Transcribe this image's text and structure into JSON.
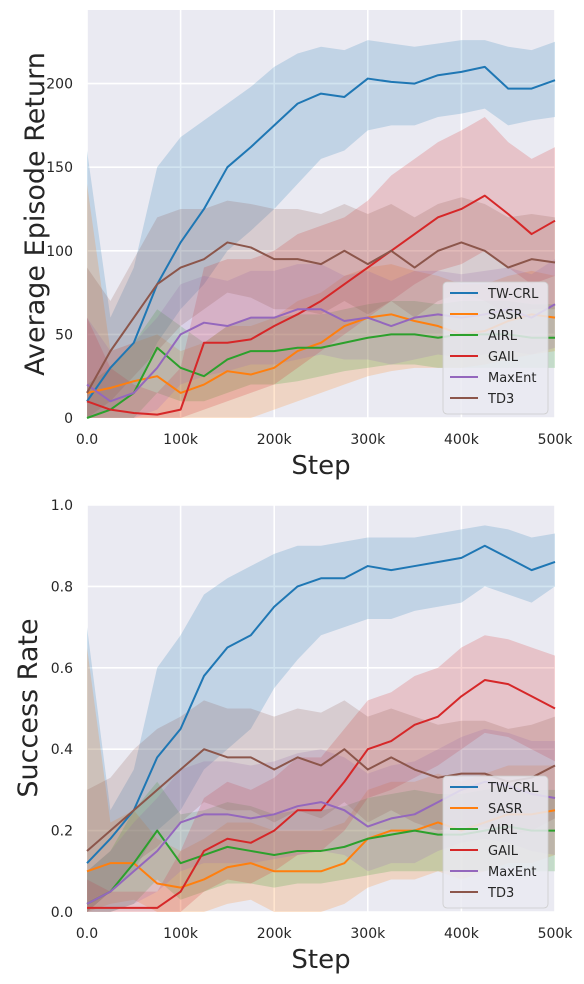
{
  "chart_data": [
    {
      "type": "line",
      "xlabel": "Step",
      "ylabel": "Average Episode Return",
      "xlim": [
        0,
        500000
      ],
      "ylim": [
        0,
        244
      ],
      "xticks": [
        0,
        100000,
        200000,
        300000,
        400000,
        500000
      ],
      "xtick_labels": [
        "0.0",
        "100k",
        "200k",
        "300k",
        "400k",
        "500k"
      ],
      "yticks": [
        0,
        50,
        100,
        150,
        200
      ],
      "ytick_labels": [
        "0",
        "50",
        "100",
        "150",
        "200"
      ],
      "grid": true,
      "legend_position": "lower-right",
      "x": [
        0,
        25000,
        50000,
        75000,
        100000,
        125000,
        150000,
        175000,
        200000,
        225000,
        250000,
        275000,
        300000,
        325000,
        350000,
        375000,
        400000,
        425000,
        450000,
        475000,
        500000
      ],
      "series": [
        {
          "name": "TW-CRL",
          "color": "#1f77b4",
          "mean": [
            10,
            30,
            45,
            80,
            105,
            125,
            150,
            162,
            175,
            188,
            194,
            192,
            203,
            201,
            200,
            205,
            207,
            210,
            197,
            197,
            202
          ],
          "lower": [
            0,
            5,
            15,
            45,
            65,
            80,
            100,
            112,
            125,
            140,
            155,
            160,
            172,
            175,
            175,
            180,
            182,
            185,
            175,
            178,
            180
          ],
          "upper": [
            160,
            60,
            90,
            150,
            168,
            178,
            188,
            198,
            210,
            218,
            222,
            220,
            226,
            224,
            222,
            224,
            226,
            226,
            222,
            220,
            225
          ]
        },
        {
          "name": "SASR",
          "color": "#ff7f0e",
          "mean": [
            15,
            18,
            22,
            25,
            15,
            20,
            28,
            26,
            30,
            40,
            45,
            55,
            60,
            62,
            58,
            55,
            50,
            52,
            58,
            62,
            60
          ],
          "lower": [
            0,
            0,
            0,
            0,
            0,
            0,
            0,
            0,
            5,
            10,
            15,
            20,
            25,
            28,
            30,
            30,
            30,
            32,
            35,
            38,
            40
          ],
          "upper": [
            140,
            40,
            45,
            50,
            40,
            45,
            55,
            55,
            60,
            70,
            75,
            85,
            90,
            92,
            88,
            85,
            80,
            80,
            85,
            88,
            85
          ]
        },
        {
          "name": "AIRL",
          "color": "#2ca02c",
          "mean": [
            0,
            5,
            15,
            42,
            30,
            25,
            35,
            40,
            40,
            42,
            42,
            45,
            48,
            50,
            50,
            48,
            50,
            50,
            50,
            48,
            48
          ],
          "lower": [
            0,
            0,
            0,
            15,
            10,
            10,
            15,
            20,
            20,
            22,
            25,
            28,
            30,
            32,
            32,
            30,
            30,
            30,
            30,
            30,
            30
          ],
          "upper": [
            20,
            30,
            45,
            65,
            55,
            45,
            55,
            60,
            60,
            62,
            62,
            65,
            68,
            70,
            70,
            68,
            70,
            70,
            70,
            68,
            68
          ]
        },
        {
          "name": "GAIL",
          "color": "#d62728",
          "mean": [
            10,
            5,
            3,
            2,
            5,
            45,
            45,
            47,
            55,
            62,
            70,
            80,
            90,
            100,
            110,
            120,
            125,
            133,
            122,
            110,
            118
          ],
          "lower": [
            0,
            0,
            0,
            0,
            0,
            5,
            10,
            15,
            20,
            30,
            40,
            50,
            60,
            70,
            80,
            88,
            92,
            100,
            90,
            80,
            85
          ],
          "upper": [
            60,
            30,
            20,
            15,
            30,
            90,
            95,
            95,
            100,
            110,
            115,
            120,
            130,
            145,
            155,
            165,
            172,
            180,
            165,
            155,
            162
          ]
        },
        {
          "name": "MaxEnt",
          "color": "#9467bd",
          "mean": [
            20,
            10,
            15,
            30,
            50,
            57,
            55,
            60,
            60,
            65,
            65,
            58,
            60,
            55,
            60,
            62,
            60,
            62,
            65,
            60,
            68
          ],
          "lower": [
            0,
            0,
            0,
            5,
            20,
            25,
            28,
            32,
            32,
            35,
            38,
            35,
            35,
            32,
            35,
            38,
            36,
            38,
            40,
            38,
            42
          ],
          "upper": [
            60,
            40,
            45,
            60,
            80,
            85,
            82,
            88,
            88,
            92,
            92,
            85,
            88,
            82,
            88,
            88,
            86,
            88,
            90,
            86,
            95
          ]
        },
        {
          "name": "TD3",
          "color": "#8c564b",
          "mean": [
            15,
            40,
            60,
            80,
            90,
            95,
            105,
            102,
            95,
            95,
            92,
            100,
            92,
            100,
            90,
            100,
            105,
            100,
            90,
            95,
            93
          ],
          "lower": [
            0,
            10,
            25,
            40,
            55,
            65,
            75,
            72,
            65,
            65,
            62,
            70,
            62,
            70,
            60,
            70,
            75,
            70,
            62,
            65,
            65
          ],
          "upper": [
            90,
            70,
            95,
            120,
            125,
            125,
            130,
            128,
            125,
            125,
            122,
            128,
            122,
            128,
            120,
            128,
            132,
            128,
            120,
            122,
            120
          ]
        }
      ]
    },
    {
      "type": "line",
      "xlabel": "Step",
      "ylabel": "Success Rate",
      "xlim": [
        0,
        500000
      ],
      "ylim": [
        0,
        1.0
      ],
      "xticks": [
        0,
        100000,
        200000,
        300000,
        400000,
        500000
      ],
      "xtick_labels": [
        "0.0",
        "100k",
        "200k",
        "300k",
        "400k",
        "500k"
      ],
      "yticks": [
        0,
        0.2,
        0.4,
        0.6,
        0.8,
        1.0
      ],
      "ytick_labels": [
        "0.0",
        "0.2",
        "0.4",
        "0.6",
        "0.8",
        "1.0"
      ],
      "grid": true,
      "legend_position": "lower-right",
      "x": [
        0,
        25000,
        50000,
        75000,
        100000,
        125000,
        150000,
        175000,
        200000,
        225000,
        250000,
        275000,
        300000,
        325000,
        350000,
        375000,
        400000,
        425000,
        450000,
        475000,
        500000
      ],
      "series": [
        {
          "name": "TW-CRL",
          "color": "#1f77b4",
          "mean": [
            0.12,
            0.18,
            0.25,
            0.38,
            0.45,
            0.58,
            0.65,
            0.68,
            0.75,
            0.8,
            0.82,
            0.82,
            0.85,
            0.84,
            0.85,
            0.86,
            0.87,
            0.9,
            0.87,
            0.84,
            0.86
          ],
          "lower": [
            0.0,
            0.05,
            0.1,
            0.2,
            0.25,
            0.35,
            0.4,
            0.45,
            0.55,
            0.62,
            0.68,
            0.7,
            0.72,
            0.72,
            0.74,
            0.75,
            0.76,
            0.8,
            0.78,
            0.76,
            0.8
          ],
          "upper": [
            0.7,
            0.25,
            0.35,
            0.6,
            0.68,
            0.78,
            0.82,
            0.85,
            0.88,
            0.9,
            0.9,
            0.91,
            0.92,
            0.92,
            0.92,
            0.93,
            0.94,
            0.95,
            0.94,
            0.92,
            0.93
          ]
        },
        {
          "name": "SASR",
          "color": "#ff7f0e",
          "mean": [
            0.1,
            0.12,
            0.12,
            0.07,
            0.06,
            0.08,
            0.11,
            0.12,
            0.1,
            0.1,
            0.1,
            0.12,
            0.18,
            0.2,
            0.2,
            0.22,
            0.2,
            0.22,
            0.24,
            0.24,
            0.25
          ],
          "lower": [
            0.0,
            0.02,
            0.03,
            0.0,
            0.0,
            0.0,
            0.02,
            0.03,
            0.0,
            0.0,
            0.0,
            0.02,
            0.06,
            0.08,
            0.08,
            0.1,
            0.08,
            0.1,
            0.12,
            0.12,
            0.14
          ],
          "upper": [
            0.65,
            0.22,
            0.25,
            0.18,
            0.15,
            0.18,
            0.22,
            0.22,
            0.2,
            0.2,
            0.2,
            0.22,
            0.3,
            0.32,
            0.32,
            0.34,
            0.32,
            0.34,
            0.36,
            0.36,
            0.36
          ]
        },
        {
          "name": "AIRL",
          "color": "#2ca02c",
          "mean": [
            0.02,
            0.05,
            0.12,
            0.2,
            0.12,
            0.14,
            0.16,
            0.15,
            0.14,
            0.15,
            0.15,
            0.16,
            0.18,
            0.19,
            0.2,
            0.19,
            0.19,
            0.2,
            0.21,
            0.2,
            0.2
          ],
          "lower": [
            0.0,
            0.0,
            0.02,
            0.08,
            0.03,
            0.05,
            0.07,
            0.07,
            0.06,
            0.07,
            0.07,
            0.08,
            0.09,
            0.1,
            0.1,
            0.1,
            0.1,
            0.1,
            0.11,
            0.1,
            0.1
          ],
          "upper": [
            0.1,
            0.15,
            0.25,
            0.32,
            0.24,
            0.25,
            0.27,
            0.26,
            0.24,
            0.25,
            0.25,
            0.26,
            0.28,
            0.29,
            0.3,
            0.29,
            0.29,
            0.3,
            0.31,
            0.3,
            0.3
          ]
        },
        {
          "name": "GAIL",
          "color": "#d62728",
          "mean": [
            0.01,
            0.01,
            0.01,
            0.01,
            0.05,
            0.15,
            0.18,
            0.17,
            0.2,
            0.25,
            0.25,
            0.32,
            0.4,
            0.42,
            0.46,
            0.48,
            0.53,
            0.57,
            0.56,
            0.53,
            0.5
          ],
          "lower": [
            0.0,
            0.0,
            0.0,
            0.0,
            0.0,
            0.05,
            0.08,
            0.07,
            0.1,
            0.14,
            0.15,
            0.2,
            0.28,
            0.3,
            0.33,
            0.36,
            0.4,
            0.44,
            0.43,
            0.4,
            0.37
          ],
          "upper": [
            0.08,
            0.05,
            0.05,
            0.05,
            0.15,
            0.28,
            0.32,
            0.3,
            0.33,
            0.38,
            0.38,
            0.45,
            0.52,
            0.54,
            0.58,
            0.6,
            0.65,
            0.68,
            0.67,
            0.65,
            0.63
          ]
        },
        {
          "name": "MaxEnt",
          "color": "#9467bd",
          "mean": [
            0.02,
            0.05,
            0.1,
            0.15,
            0.22,
            0.24,
            0.24,
            0.23,
            0.24,
            0.26,
            0.27,
            0.25,
            0.21,
            0.23,
            0.24,
            0.27,
            0.3,
            0.32,
            0.31,
            0.29,
            0.28
          ],
          "lower": [
            0.0,
            0.0,
            0.02,
            0.05,
            0.1,
            0.12,
            0.12,
            0.12,
            0.13,
            0.14,
            0.15,
            0.14,
            0.1,
            0.12,
            0.12,
            0.15,
            0.17,
            0.18,
            0.17,
            0.15,
            0.14
          ],
          "upper": [
            0.1,
            0.15,
            0.22,
            0.28,
            0.35,
            0.37,
            0.37,
            0.36,
            0.37,
            0.39,
            0.4,
            0.38,
            0.34,
            0.36,
            0.37,
            0.4,
            0.43,
            0.45,
            0.44,
            0.42,
            0.42
          ]
        },
        {
          "name": "TD3",
          "color": "#8c564b",
          "mean": [
            0.15,
            0.2,
            0.25,
            0.3,
            0.35,
            0.4,
            0.38,
            0.38,
            0.35,
            0.38,
            0.36,
            0.4,
            0.35,
            0.38,
            0.35,
            0.33,
            0.34,
            0.34,
            0.32,
            0.33,
            0.36
          ],
          "lower": [
            0.0,
            0.05,
            0.12,
            0.16,
            0.22,
            0.27,
            0.25,
            0.25,
            0.22,
            0.25,
            0.23,
            0.27,
            0.22,
            0.25,
            0.22,
            0.2,
            0.21,
            0.21,
            0.19,
            0.2,
            0.23
          ],
          "upper": [
            0.3,
            0.33,
            0.4,
            0.45,
            0.48,
            0.52,
            0.5,
            0.5,
            0.48,
            0.5,
            0.49,
            0.52,
            0.48,
            0.5,
            0.48,
            0.46,
            0.47,
            0.47,
            0.45,
            0.46,
            0.48
          ]
        }
      ]
    }
  ]
}
